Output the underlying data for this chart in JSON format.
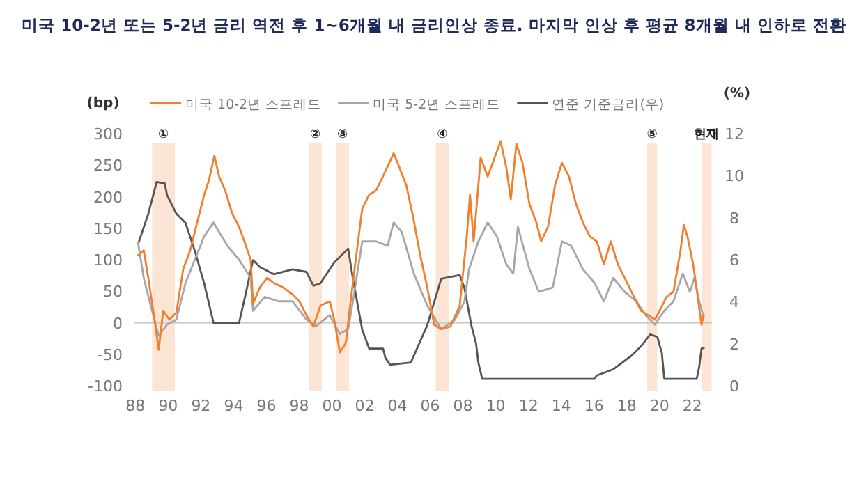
{
  "chart_data": {
    "type": "line",
    "title": "미국 10-2년 또는 5-2년 금리 역전 후 1~6개월 내 금리인상 종료. 마지막 인상 후 평균 8개월 내 인하로 전환",
    "ylabel": "(bp)",
    "y2label": "(%)",
    "legend": "top",
    "xlim": [
      1987.9,
      2023.2
    ],
    "xticks": [
      {
        "value": 1988,
        "label": "88"
      },
      {
        "value": 1990,
        "label": "90"
      },
      {
        "value": 1992,
        "label": "92"
      },
      {
        "value": 1994,
        "label": "94"
      },
      {
        "value": 1996,
        "label": "96"
      },
      {
        "value": 1998,
        "label": "98"
      },
      {
        "value": 2000,
        "label": "00"
      },
      {
        "value": 2002,
        "label": "02"
      },
      {
        "value": 2004,
        "label": "04"
      },
      {
        "value": 2006,
        "label": "06"
      },
      {
        "value": 2008,
        "label": "08"
      },
      {
        "value": 2010,
        "label": "10"
      },
      {
        "value": 2012,
        "label": "12"
      },
      {
        "value": 2014,
        "label": "14"
      },
      {
        "value": 2016,
        "label": "16"
      },
      {
        "value": 2018,
        "label": "18"
      },
      {
        "value": 2020,
        "label": "20"
      },
      {
        "value": 2022,
        "label": "22"
      }
    ],
    "ylim": [
      -100,
      300
    ],
    "yticks": [
      -100,
      -50,
      0,
      50,
      100,
      150,
      200,
      250,
      300
    ],
    "y2lim": [
      0,
      12
    ],
    "y2ticks": [
      0,
      2,
      4,
      6,
      8,
      10,
      12
    ],
    "ref_lines": [
      {
        "axis": "y",
        "value": 0,
        "color": "#c8c8c8"
      }
    ],
    "bands": [
      {
        "axis": "x",
        "from": 1989.02,
        "to": 1990.41,
        "label": "①",
        "color": "#fde5d6"
      },
      {
        "axis": "x",
        "from": 1998.58,
        "to": 1999.38,
        "label": "②",
        "color": "#fde5d6"
      },
      {
        "axis": "x",
        "from": 2000.23,
        "to": 2001.05,
        "label": "③",
        "color": "#fde5d6"
      },
      {
        "axis": "x",
        "from": 2006.33,
        "to": 2007.15,
        "label": "④",
        "color": "#fde5d6"
      },
      {
        "axis": "x",
        "from": 2019.24,
        "to": 2019.86,
        "label": "⑤",
        "color": "#fde5d6"
      },
      {
        "axis": "x",
        "from": 2022.56,
        "to": 2023.18,
        "label": "현재",
        "color": "#fde5d6"
      }
    ],
    "series": [
      {
        "name": "미국 10-2년 스프레드",
        "color": "#f07f2e",
        "x": [
          1988.17,
          1988.51,
          1988.79,
          1989.13,
          1989.42,
          1989.7,
          1990.07,
          1990.5,
          1990.92,
          1991.35,
          1991.77,
          1992.2,
          1992.48,
          1992.82,
          1993.11,
          1993.48,
          1993.9,
          1994.33,
          1994.75,
          1995.04,
          1995.18,
          1995.6,
          1996.03,
          1996.45,
          1997.02,
          1997.59,
          1998.01,
          1998.44,
          1998.87,
          1999.29,
          1999.86,
          2000.14,
          2000.48,
          2000.85,
          2001.14,
          2001.56,
          2001.85,
          2002.27,
          2002.7,
          2003.26,
          2003.77,
          2004.11,
          2004.54,
          2004.97,
          2005.39,
          2005.82,
          2006.24,
          2006.67,
          2007.23,
          2007.8,
          2008.23,
          2008.43,
          2008.65,
          2009.08,
          2009.51,
          2009.93,
          2010.3,
          2010.64,
          2010.92,
          2011.26,
          2011.63,
          2012.06,
          2012.48,
          2012.77,
          2013.19,
          2013.62,
          2014.04,
          2014.47,
          2014.9,
          2015.32,
          2015.75,
          2016.17,
          2016.6,
          2017.02,
          2017.45,
          2017.87,
          2018.44,
          2018.87,
          2019.29,
          2019.72,
          2020.0,
          2020.43,
          2020.85,
          2021.28,
          2021.48,
          2021.7,
          2022.05,
          2022.33,
          2022.56,
          2022.7
        ],
        "values": [
          107,
          115,
          71,
          12,
          -43,
          19,
          5,
          16,
          85,
          115,
          159,
          203,
          225,
          265,
          232,
          210,
          174,
          152,
          122,
          100,
          30,
          56,
          71,
          63,
          56,
          45,
          34,
          12,
          -6,
          27,
          34,
          5,
          -47,
          -32,
          34,
          122,
          181,
          203,
          210,
          240,
          269,
          247,
          218,
          166,
          107,
          56,
          -3,
          -10,
          -6,
          27,
          137,
          203,
          129,
          262,
          232,
          262,
          288,
          247,
          196,
          284,
          254,
          188,
          159,
          129,
          152,
          218,
          254,
          232,
          188,
          159,
          137,
          129,
          93,
          129,
          93,
          71,
          41,
          19,
          12,
          5,
          19,
          41,
          49,
          115,
          155,
          137,
          93,
          41,
          -3,
          12
        ]
      },
      {
        "name": "미국 5-2년 스프레드",
        "color": "#a6a6a6",
        "x": [
          1988.17,
          1988.51,
          1988.94,
          1989.42,
          1989.93,
          1990.5,
          1991.06,
          1991.63,
          1992.2,
          1992.77,
          1993.11,
          1993.62,
          1994.33,
          1995.04,
          1995.18,
          1995.89,
          1996.74,
          1997.59,
          1998.44,
          1999.01,
          1999.86,
          2000.48,
          2000.99,
          2001.28,
          2001.85,
          2002.7,
          2003.4,
          2003.77,
          2004.26,
          2005.0,
          2005.82,
          2006.67,
          2007.52,
          2008.09,
          2008.37,
          2008.94,
          2009.51,
          2010.07,
          2010.64,
          2011.07,
          2011.35,
          2012.06,
          2012.63,
          2013.48,
          2014.04,
          2014.61,
          2015.32,
          2016.03,
          2016.6,
          2017.17,
          2017.87,
          2018.58,
          2019.15,
          2019.72,
          2020.29,
          2020.85,
          2021.42,
          2021.85,
          2022.13,
          2022.42,
          2022.7
        ],
        "values": [
          126,
          71,
          27,
          -21,
          -3,
          5,
          63,
          100,
          137,
          159,
          144,
          122,
          100,
          71,
          19,
          41,
          34,
          34,
          5,
          -6,
          12,
          -18,
          -10,
          34,
          129,
          129,
          122,
          159,
          144,
          78,
          27,
          -10,
          5,
          34,
          85,
          129,
          159,
          137,
          93,
          78,
          152,
          85,
          49,
          56,
          129,
          122,
          85,
          63,
          34,
          71,
          49,
          34,
          12,
          -3,
          19,
          34,
          78,
          49,
          71,
          34,
          8
        ]
      },
      {
        "name": "연준 기준금리(우)",
        "color": "#555555",
        "axis": "y2",
        "x": [
          1988.17,
          1988.79,
          1989.3,
          1989.79,
          1989.93,
          1990.5,
          1991.06,
          1991.63,
          1992.2,
          1992.77,
          1994.33,
          1994.75,
          1995.18,
          1995.6,
          1996.45,
          1997.59,
          1998.44,
          1998.87,
          1999.29,
          2000.14,
          2000.99,
          2001.28,
          2001.85,
          2002.27,
          2003.12,
          2003.26,
          2003.55,
          2004.82,
          2005.82,
          2006.67,
          2007.8,
          2008.09,
          2008.51,
          2008.8,
          2008.94,
          2009.17,
          2016.03,
          2016.17,
          2017.17,
          2017.73,
          2018.3,
          2018.87,
          2019.43,
          2019.86,
          2020.14,
          2020.29,
          2022.27,
          2022.42,
          2022.56,
          2022.7
        ],
        "values": [
          6.75,
          8.19,
          9.7,
          9.63,
          9.08,
          8.19,
          7.75,
          6.42,
          4.87,
          2.99,
          2.99,
          4.43,
          5.98,
          5.65,
          5.31,
          5.54,
          5.42,
          4.76,
          4.87,
          5.87,
          6.53,
          5.09,
          2.66,
          1.77,
          1.77,
          1.33,
          1.0,
          1.11,
          2.88,
          5.09,
          5.27,
          4.65,
          2.88,
          2.0,
          1.1,
          0.33,
          0.33,
          0.49,
          0.78,
          1.11,
          1.44,
          1.88,
          2.44,
          2.33,
          1.55,
          0.33,
          0.33,
          0.89,
          1.77,
          1.8
        ]
      }
    ]
  }
}
